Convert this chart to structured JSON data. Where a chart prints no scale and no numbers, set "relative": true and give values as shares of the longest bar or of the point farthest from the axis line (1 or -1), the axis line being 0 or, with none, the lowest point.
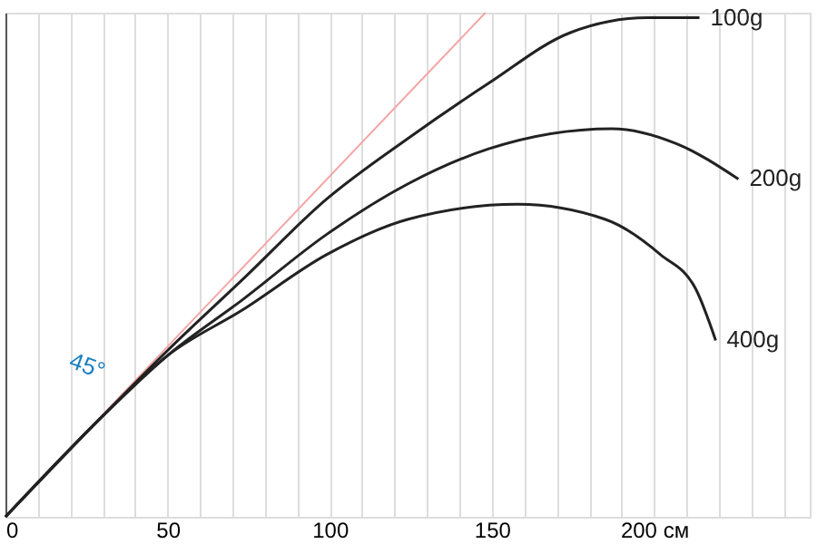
{
  "chart_data": {
    "type": "line",
    "relative": true,
    "xlim": [
      0,
      248
    ],
    "xticks": [
      0,
      {
        "value": 10,
        "label": null
      },
      {
        "value": 20,
        "label": null
      },
      {
        "value": 30,
        "label": null
      },
      {
        "value": 40,
        "label": null
      },
      50,
      {
        "value": 60,
        "label": null
      },
      {
        "value": 70,
        "label": null
      },
      {
        "value": 80,
        "label": null
      },
      {
        "value": 90,
        "label": null
      },
      100,
      {
        "value": 110,
        "label": null
      },
      {
        "value": 120,
        "label": null
      },
      {
        "value": 130,
        "label": null
      },
      {
        "value": 140,
        "label": null
      },
      150,
      {
        "value": 160,
        "label": null
      },
      {
        "value": 170,
        "label": null
      },
      {
        "value": 180,
        "label": null
      },
      {
        "value": 190,
        "label": null
      },
      {
        "value": 200,
        "label": "200 см"
      },
      {
        "value": 210,
        "label": null
      },
      {
        "value": 220,
        "label": null
      },
      {
        "value": 230,
        "label": null
      },
      {
        "value": 240,
        "label": null
      }
    ],
    "grid": "x",
    "marker": "none",
    "line_style": "solid",
    "annotations": [
      "45°"
    ],
    "series": [
      {
        "color": "#f4a6a6",
        "x": [
          0,
          148
        ],
        "values": [
          0,
          1
        ]
      },
      {
        "name": "100g",
        "color": "#222222",
        "x": [
          0,
          30,
          50,
          73,
          99,
          124,
          149,
          174,
          198,
          214
        ],
        "values": [
          0,
          0.2,
          0.33,
          0.47,
          0.63,
          0.75,
          0.86,
          0.96,
          0.99,
          0.99
        ]
      },
      {
        "name": "200g",
        "color": "#222222",
        "x": [
          0,
          30,
          50,
          73,
          99,
          124,
          149,
          187,
          207,
          226
        ],
        "values": [
          0,
          0.2,
          0.32,
          0.43,
          0.56,
          0.66,
          0.73,
          0.77,
          0.74,
          0.67
        ]
      },
      {
        "name": "400g",
        "color": "#222222",
        "x": [
          0,
          30,
          50,
          73,
          99,
          124,
          158,
          185,
          202,
          213,
          219
        ],
        "values": [
          0,
          0.2,
          0.32,
          0.41,
          0.52,
          0.59,
          0.62,
          0.59,
          0.52,
          0.45,
          0.35
        ]
      }
    ]
  }
}
